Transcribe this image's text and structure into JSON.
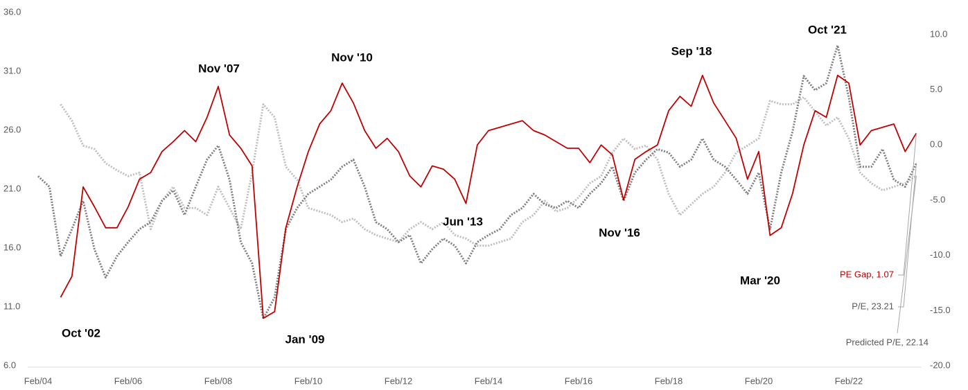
{
  "chart_data": {
    "type": "line",
    "categories": [
      "Feb/04",
      null,
      null,
      null,
      null,
      null,
      null,
      null,
      "Feb/06",
      null,
      null,
      null,
      null,
      null,
      null,
      null,
      "Feb/08",
      null,
      null,
      null,
      null,
      null,
      null,
      null,
      "Feb/10",
      null,
      null,
      null,
      null,
      null,
      null,
      null,
      "Feb/12",
      null,
      null,
      null,
      null,
      null,
      null,
      null,
      "Feb/14",
      null,
      null,
      null,
      null,
      null,
      null,
      null,
      "Feb/16",
      null,
      null,
      null,
      null,
      null,
      null,
      null,
      "Feb/18",
      null,
      null,
      null,
      null,
      null,
      null,
      null,
      "Feb/20",
      null,
      null,
      null,
      null,
      null,
      null,
      null,
      "Feb/22",
      null,
      null,
      null,
      null,
      null,
      null
    ],
    "ylim": [
      6,
      36
    ],
    "yticks": [
      {
        "value": 6,
        "label": "6.0"
      },
      {
        "value": 11,
        "label": "11.0"
      },
      {
        "value": 16,
        "label": "16.0"
      },
      {
        "value": 21,
        "label": "21.0"
      },
      {
        "value": 26,
        "label": "26.0"
      },
      {
        "value": 31,
        "label": "31.0"
      },
      {
        "value": 36,
        "label": "36.0"
      }
    ],
    "y2lim": [
      -20,
      12
    ],
    "y2ticks": [
      {
        "value": -20,
        "label": "-20.0"
      },
      {
        "value": -15,
        "label": "-15.0"
      },
      {
        "value": -10,
        "label": "-10.0"
      },
      {
        "value": -5,
        "label": "-5.0"
      },
      {
        "value": 0,
        "label": "0.0"
      },
      {
        "value": 5,
        "label": "5.0"
      },
      {
        "value": 10,
        "label": "10.0"
      }
    ],
    "grid": false,
    "series": [
      {
        "name": "Predicted P/E, 22.14",
        "color": "#bfbfbf",
        "dashed": true,
        "values": [
          null,
          null,
          28.2,
          26.8,
          24.7,
          24.4,
          23.2,
          22.6,
          22.1,
          22.4,
          17.6,
          20.0,
          21.2,
          19.4,
          19.4,
          18.8,
          21.2,
          19.4,
          17.6,
          22.4,
          28.2,
          27.1,
          22.9,
          21.8,
          19.4,
          19.1,
          18.8,
          18.2,
          18.5,
          17.6,
          17.1,
          16.8,
          16.5,
          17.6,
          18.2,
          17.6,
          18.2,
          17.1,
          16.8,
          16.2,
          16.2,
          16.5,
          16.8,
          18.2,
          18.8,
          20.0,
          19.1,
          19.4,
          20.3,
          21.5,
          22.1,
          24.1,
          25.3,
          24.4,
          24.7,
          23.5,
          20.6,
          18.8,
          19.7,
          20.6,
          21.2,
          22.4,
          24.1,
          24.7,
          25.3,
          28.5,
          28.2,
          28.2,
          28.8,
          27.6,
          26.4,
          27.1,
          25.3,
          22.4,
          21.5,
          20.9,
          21.2,
          21.5,
          22.14
        ]
      },
      {
        "name": "P/E, 23.21",
        "color": "#7f7f7f",
        "dashed": true,
        "values": [
          22.1,
          21.2,
          15.3,
          17.6,
          20.0,
          15.9,
          13.5,
          15.3,
          16.5,
          17.6,
          18.2,
          20.0,
          20.9,
          18.8,
          21.2,
          23.5,
          24.7,
          21.8,
          16.5,
          14.7,
          10.0,
          11.8,
          17.6,
          19.4,
          20.6,
          21.2,
          21.8,
          22.9,
          23.5,
          21.2,
          18.2,
          17.6,
          16.5,
          17.1,
          14.7,
          15.9,
          16.8,
          16.2,
          14.7,
          16.5,
          17.1,
          17.6,
          18.8,
          19.4,
          20.6,
          19.7,
          19.4,
          20.0,
          19.4,
          20.6,
          21.5,
          22.9,
          20.0,
          22.4,
          23.5,
          24.4,
          24.1,
          22.9,
          23.5,
          25.3,
          23.5,
          22.9,
          21.8,
          20.6,
          22.4,
          17.6,
          22.4,
          25.9,
          30.6,
          29.4,
          30.0,
          33.2,
          28.8,
          22.9,
          22.9,
          24.4,
          21.8,
          21.2,
          23.21
        ]
      },
      {
        "name": "PE Gap, 1.07",
        "color": "#c00000",
        "dashed": false,
        "axis": "y2",
        "values": [
          null,
          null,
          -13.8,
          -11.9,
          -3.8,
          -5.6,
          -7.5,
          -7.5,
          -5.6,
          -3.1,
          -2.5,
          -0.6,
          0.3,
          1.3,
          0.3,
          2.5,
          5.3,
          0.9,
          -0.3,
          -1.9,
          -15.7,
          -15.1,
          -7.5,
          -3.8,
          -0.6,
          1.9,
          3.1,
          5.6,
          3.8,
          1.3,
          -0.3,
          0.6,
          -0.6,
          -2.8,
          -3.8,
          -1.9,
          -2.2,
          -3.1,
          -5.3,
          0,
          1.3,
          1.6,
          1.9,
          2.2,
          1.3,
          0.9,
          0.3,
          -0.3,
          -0.3,
          -1.6,
          0,
          -0.9,
          -5.0,
          -1.3,
          -0.6,
          0,
          3.1,
          4.4,
          3.5,
          6.3,
          3.8,
          2.2,
          0.6,
          -3.1,
          -0.6,
          -8.2,
          -7.5,
          -4.4,
          0,
          3.1,
          2.5,
          6.3,
          5.6,
          0,
          1.3,
          1.6,
          1.9,
          -0.6,
          1.07
        ]
      }
    ],
    "annotations": [
      "Oct '02",
      "Nov '07",
      "Jan '09",
      "Nov '10",
      "Jun '13",
      "Nov '16",
      "Sep '18",
      "Mar '20",
      "Oct '21"
    ]
  }
}
